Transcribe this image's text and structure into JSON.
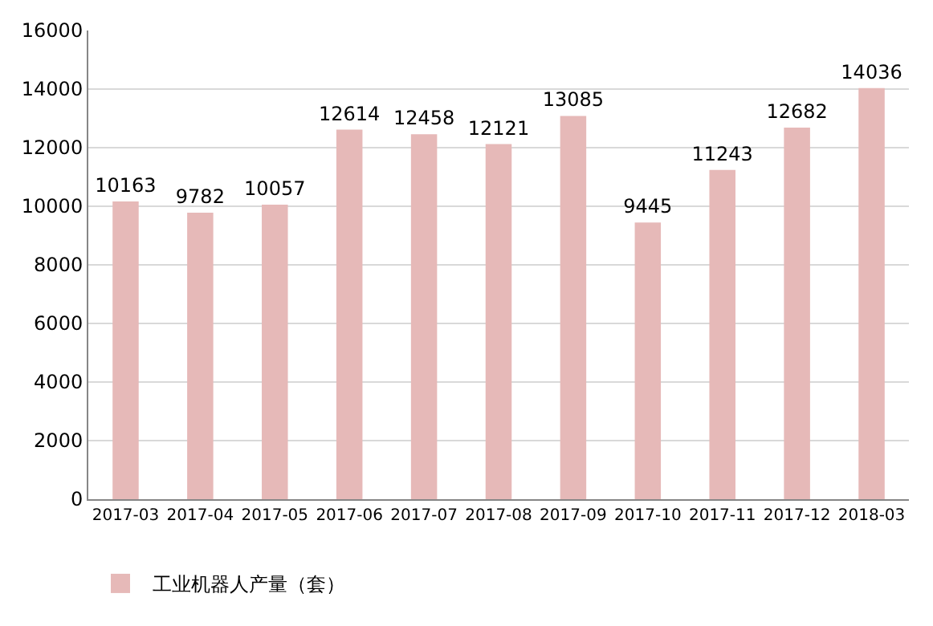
{
  "chart_data": {
    "type": "bar",
    "categories": [
      "2017-03",
      "2017-04",
      "2017-05",
      "2017-06",
      "2017-07",
      "2017-08",
      "2017-09",
      "2017-10",
      "2017-11",
      "2017-12",
      "2018-03"
    ],
    "series": [
      {
        "name": "工业机器人产量（套）",
        "color": "#e6b9b8",
        "values": [
          10163,
          9782,
          10057,
          12614,
          12458,
          12121,
          13085,
          9445,
          11243,
          12682,
          14036
        ]
      }
    ],
    "ylim": [
      0,
      16000
    ],
    "yticks": [
      0,
      2000,
      4000,
      6000,
      8000,
      10000,
      12000,
      14000,
      16000
    ],
    "grid": "y",
    "legend": "bottom left",
    "data_labels": true
  }
}
